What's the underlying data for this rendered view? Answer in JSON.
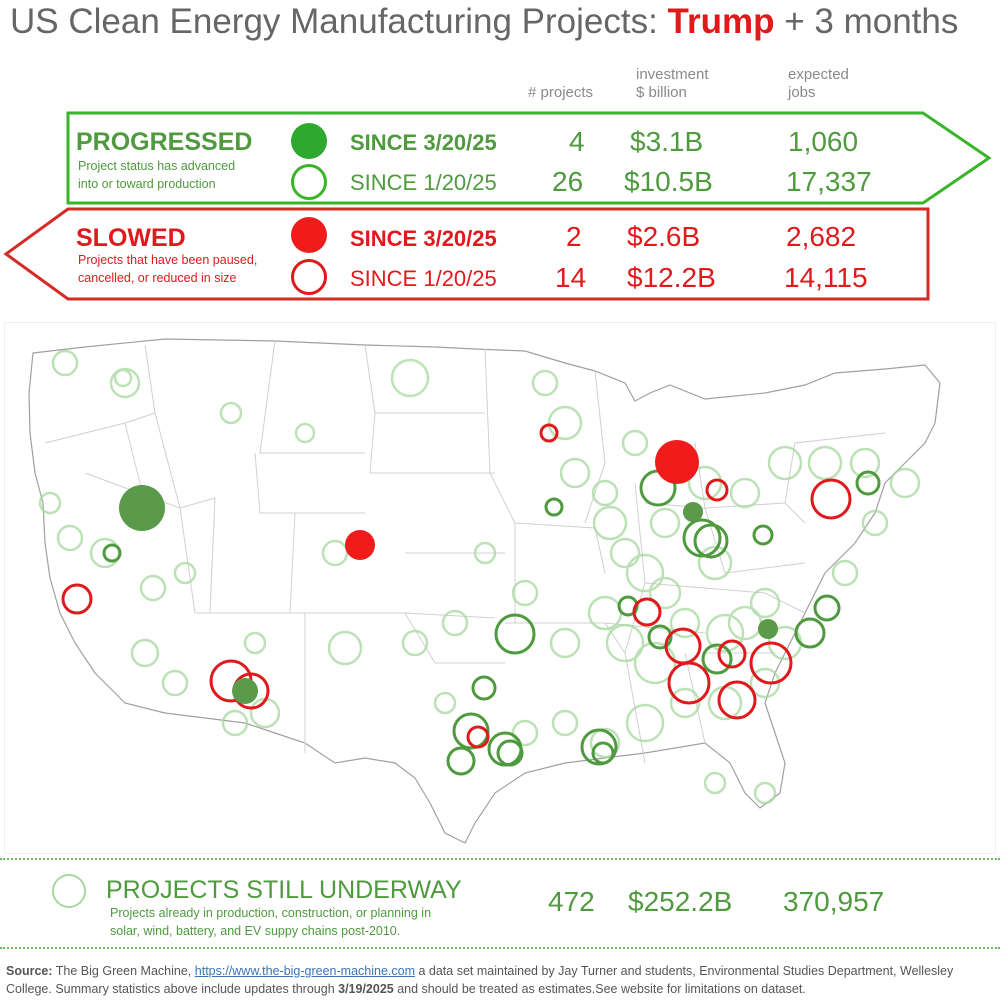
{
  "title": {
    "main": "US Clean Energy Manufacturing Projects: ",
    "highlight": "Trump",
    "suffix": " + 3 months"
  },
  "columns": {
    "projects": "# projects",
    "investment_1": "investment",
    "investment_2": "$ billion",
    "jobs_1": "expected",
    "jobs_2": "jobs"
  },
  "progressed": {
    "label": "PROGRESSED",
    "desc_1": "Project status has advanced",
    "desc_2": "into or toward production",
    "rows": [
      {
        "since": "SINCE 3/20/25",
        "projects": "4",
        "investment": "$3.1B",
        "jobs": "1,060"
      },
      {
        "since": "SINCE 1/20/25",
        "projects": "26",
        "investment": "$10.5B",
        "jobs": "17,337"
      }
    ]
  },
  "slowed": {
    "label": "SLOWED",
    "desc_1": "Projects that have been paused,",
    "desc_2": "cancelled, or reduced in size",
    "rows": [
      {
        "since": "SINCE 3/20/25",
        "projects": "2",
        "investment": "$2.6B",
        "jobs": "2,682"
      },
      {
        "since": "SINCE 1/20/25",
        "projects": "14",
        "investment": "$12.2B",
        "jobs": "14,115"
      }
    ]
  },
  "underway": {
    "label": "PROJECTS STILL UNDERWAY",
    "desc_1": "Projects already in production, construction, or planning in",
    "desc_2": "solar, wind, battery, and EV suppy chains post-2010.",
    "projects": "472",
    "investment": "$252.2B",
    "jobs": "370,957"
  },
  "footer": {
    "source_label": "Source:",
    "source_text_1": " The Big Green Machine, ",
    "link": "https://www.the-big-green-machine.com",
    "source_text_2": " a data set maintained by Jay Turner and students, Environmental Studies Department, Wellesley College. Summary statistics above include updates through ",
    "date": "3/19/2025",
    "source_text_3": " and should be treated as estimates.See website for limitations on dataset."
  },
  "colors": {
    "green": "#4f9a3e",
    "green_fill": "#2ea82e",
    "red": "#e0191c",
    "red_fill": "#f01c1c",
    "underway": "#a8d89e",
    "title_grey": "#666666"
  },
  "map_markers": {
    "progressed_recent": [
      {
        "place": "Nevada",
        "size": "large"
      },
      {
        "place": "Arizona",
        "size": "medium"
      },
      {
        "place": "Michigan",
        "size": "small"
      },
      {
        "place": "North Carolina",
        "size": "small"
      }
    ],
    "slowed_recent": [
      {
        "place": "Michigan",
        "size": "large"
      },
      {
        "place": "Colorado",
        "size": "medium"
      }
    ]
  }
}
